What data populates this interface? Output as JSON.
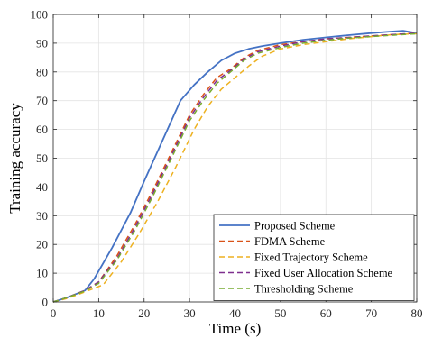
{
  "chart_data": {
    "type": "line",
    "xlabel": "Time (s)",
    "ylabel": "Training accuracy",
    "xlim": [
      0,
      80
    ],
    "ylim": [
      0,
      100
    ],
    "xticks": [
      0,
      10,
      20,
      30,
      40,
      50,
      60,
      70,
      80
    ],
    "yticks": [
      0,
      10,
      20,
      30,
      40,
      50,
      60,
      70,
      80,
      90,
      100
    ],
    "grid": true,
    "legend_position": "bottom-right",
    "series": [
      {
        "name": "Proposed Scheme",
        "color": "#4472C4",
        "style": "solid",
        "x": [
          0,
          3,
          7,
          9,
          13,
          17,
          20,
          24,
          28,
          31,
          34,
          37,
          40,
          43,
          46,
          50,
          55,
          60,
          65,
          70,
          74,
          77,
          80
        ],
        "y": [
          0,
          1.5,
          4,
          8,
          19,
          31,
          42,
          56,
          70,
          75.5,
          80,
          84,
          86.5,
          88,
          89,
          90,
          91.2,
          92,
          92.8,
          93.5,
          94,
          94.3,
          93.5
        ]
      },
      {
        "name": "FDMA Scheme",
        "color": "#D95319",
        "style": "dashed",
        "x": [
          0,
          3,
          7,
          10,
          14,
          18,
          22,
          26,
          30,
          33,
          36,
          39,
          42,
          45,
          50,
          55,
          60,
          65,
          70,
          75,
          80
        ],
        "y": [
          0,
          1.5,
          4,
          7,
          16,
          27,
          39,
          52,
          65,
          72,
          78,
          81,
          85,
          87.5,
          89.5,
          90.5,
          91.5,
          92,
          92.5,
          93,
          93.5
        ]
      },
      {
        "name": "Fixed Trajectory Scheme",
        "color": "#EDB120",
        "style": "dashed",
        "x": [
          0,
          3,
          7,
          11,
          15,
          19,
          23,
          27,
          31,
          34,
          37,
          40,
          43,
          46,
          50,
          55,
          60,
          65,
          70,
          75,
          80
        ],
        "y": [
          0,
          1.2,
          3.5,
          6,
          14,
          24,
          35,
          47,
          60,
          68,
          74,
          78,
          82,
          85.5,
          88,
          89.5,
          90.5,
          91.5,
          92.3,
          93,
          93.3
        ]
      },
      {
        "name": "Fixed User Allocation Scheme",
        "color": "#7E2F8E",
        "style": "dashed",
        "x": [
          0,
          3,
          7,
          10,
          14,
          18,
          22,
          26,
          30,
          33,
          36,
          39,
          42,
          45,
          50,
          55,
          60,
          65,
          70,
          75,
          80
        ],
        "y": [
          0,
          1.5,
          4,
          7,
          15,
          26,
          38,
          51,
          64,
          71,
          77,
          80.5,
          84.5,
          87,
          89,
          90.5,
          91.5,
          92,
          92.5,
          93,
          93.5
        ]
      },
      {
        "name": "Thresholding Scheme",
        "color": "#77AC30",
        "style": "dashed",
        "x": [
          0,
          3,
          7,
          10,
          14,
          18,
          22,
          26,
          30,
          33,
          36,
          39,
          42,
          45,
          50,
          55,
          60,
          65,
          70,
          75,
          80
        ],
        "y": [
          0,
          1.5,
          3.8,
          6.5,
          14.5,
          25,
          37,
          50,
          63,
          70,
          76,
          80,
          84,
          86.5,
          88.5,
          90,
          91,
          91.8,
          92.3,
          92.8,
          93.3
        ]
      }
    ]
  }
}
